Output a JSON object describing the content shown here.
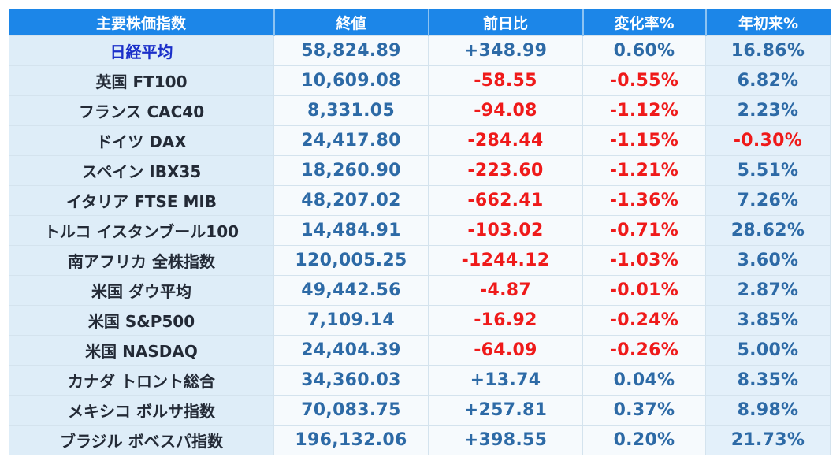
{
  "table": {
    "headers": [
      "主要株価指数",
      "終値",
      "前日比",
      "変化率%",
      "年初来%"
    ],
    "colors": {
      "header_bg": "#1c86e8",
      "name_bg": "#deedf8",
      "positive": "#2d6aa6",
      "negative": "#ef1a1a",
      "highlight_name": "#1a2fc9"
    },
    "rows": [
      {
        "name": "日経平均",
        "close": "58,824.89",
        "change": "+348.99",
        "pct": "0.60%",
        "ytd": "16.86%"
      },
      {
        "name": "英国 FT100",
        "close": "10,609.08",
        "change": "-58.55",
        "pct": "-0.55%",
        "ytd": "6.82%"
      },
      {
        "name": "フランス CAC40",
        "close": "8,331.05",
        "change": "-94.08",
        "pct": "-1.12%",
        "ytd": "2.23%"
      },
      {
        "name": "ドイツ DAX",
        "close": "24,417.80",
        "change": "-284.44",
        "pct": "-1.15%",
        "ytd": "-0.30%"
      },
      {
        "name": "スペイン IBX35",
        "close": "18,260.90",
        "change": "-223.60",
        "pct": "-1.21%",
        "ytd": "5.51%"
      },
      {
        "name": "イタリア FTSE MIB",
        "close": "48,207.02",
        "change": "-662.41",
        "pct": "-1.36%",
        "ytd": "7.26%"
      },
      {
        "name": "トルコ イスタンブール100",
        "close": "14,484.91",
        "change": "-103.02",
        "pct": "-0.71%",
        "ytd": "28.62%"
      },
      {
        "name": "南アフリカ 全株指数",
        "close": "120,005.25",
        "change": "-1244.12",
        "pct": "-1.03%",
        "ytd": "3.60%"
      },
      {
        "name": "米国 ダウ平均",
        "close": "49,442.56",
        "change": "-4.87",
        "pct": "-0.01%",
        "ytd": "2.87%"
      },
      {
        "name": "米国 S&P500",
        "close": "7,109.14",
        "change": "-16.92",
        "pct": "-0.24%",
        "ytd": "3.85%"
      },
      {
        "name": "米国 NASDAQ",
        "close": "24,404.39",
        "change": "-64.09",
        "pct": "-0.26%",
        "ytd": "5.00%"
      },
      {
        "name": "カナダ トロント総合",
        "close": "34,360.03",
        "change": "+13.74",
        "pct": "0.04%",
        "ytd": "8.35%"
      },
      {
        "name": "メキシコ ボルサ指数",
        "close": "70,083.75",
        "change": "+257.81",
        "pct": "0.37%",
        "ytd": "8.98%"
      },
      {
        "name": "ブラジル ボベスパ指数",
        "close": "196,132.06",
        "change": "+398.55",
        "pct": "0.20%",
        "ytd": "21.73%"
      }
    ]
  }
}
